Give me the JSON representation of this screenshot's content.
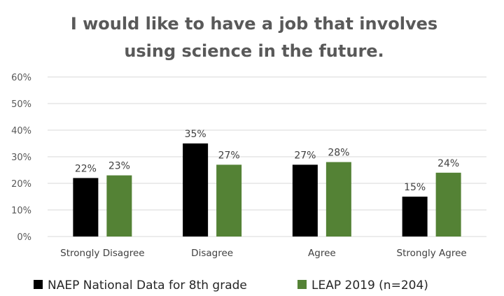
{
  "chart_data": {
    "type": "bar",
    "title": "I would like to have a job that involves using science in the future.",
    "title_lines": [
      "I would like to have a job that involves",
      "using science in the future."
    ],
    "categories": [
      "Strongly Disagree",
      "Disagree",
      "Agree",
      "Strongly Agree"
    ],
    "series": [
      {
        "name": "NAEP National Data for 8th grade",
        "color": "#000000",
        "values": [
          22,
          35,
          27,
          15
        ],
        "labels": [
          "22%",
          "35%",
          "27%",
          "15%"
        ]
      },
      {
        "name": "LEAP 2019 (n=204)",
        "color": "#548235",
        "values": [
          23,
          27,
          28,
          24
        ],
        "labels": [
          "23%",
          "27%",
          "28%",
          "24%"
        ]
      }
    ],
    "y_ticks": [
      "0%",
      "10%",
      "20%",
      "30%",
      "40%",
      "50%",
      "60%"
    ],
    "ylim": [
      0,
      60
    ],
    "y_unit": "%",
    "xlabel": "",
    "ylabel": "",
    "grid": true,
    "legend_position": "bottom"
  }
}
